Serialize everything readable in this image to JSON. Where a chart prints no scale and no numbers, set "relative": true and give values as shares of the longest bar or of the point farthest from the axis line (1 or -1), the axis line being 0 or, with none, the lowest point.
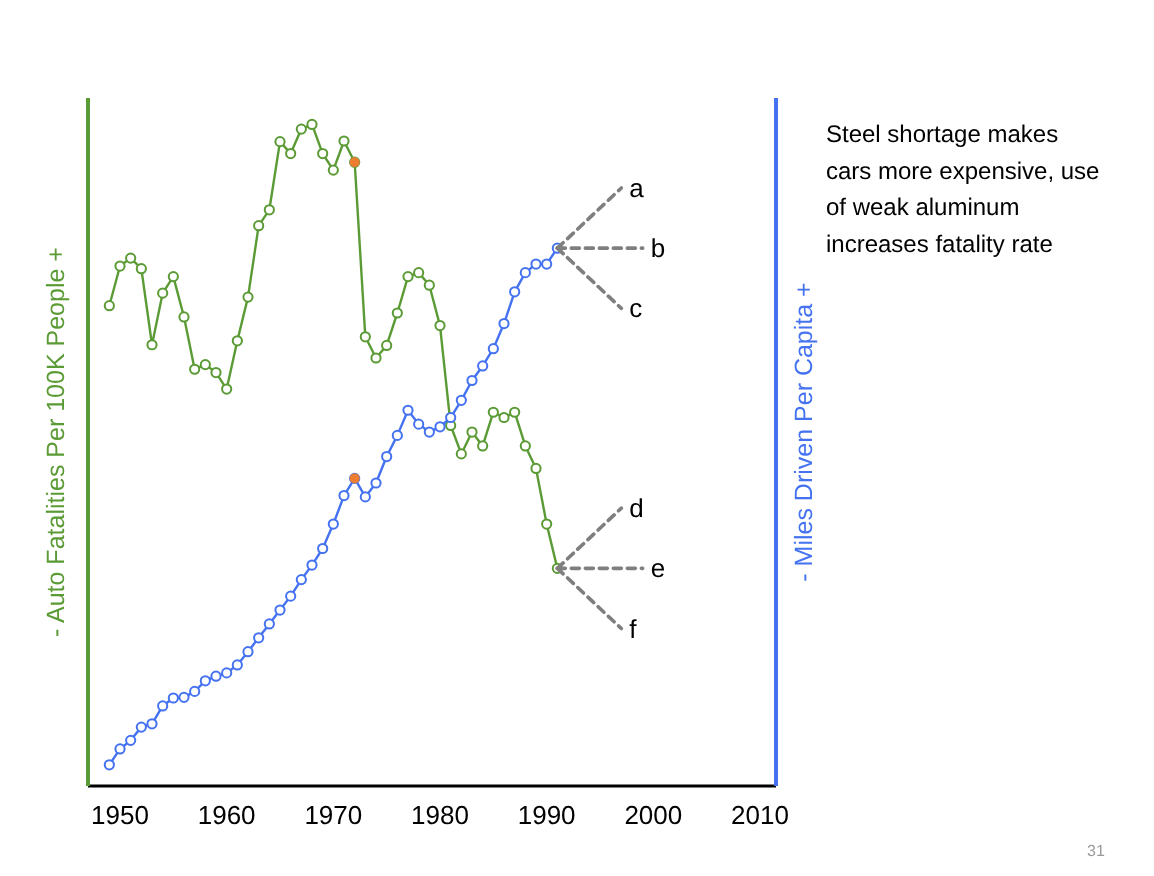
{
  "chart_data": {
    "type": "line",
    "relative": true,
    "xlim": [
      1947,
      2011.5
    ],
    "xticks": [
      1950,
      1960,
      1970,
      1980,
      1990,
      2000,
      2010
    ],
    "ylabel": "- Auto Fatalities Per 100K People +",
    "y2label": "- Miles Driven Per Capita +",
    "annotations": [
      "Steel shortage makes cars more expensive, use of weak aluminum increases fatality rate",
      "31"
    ],
    "series": [
      {
        "color": "#5b9b35",
        "marker": "circle",
        "x": [
          1949,
          1950,
          1951,
          1952,
          1953,
          1954,
          1955,
          1956,
          1957,
          1958,
          1959,
          1960,
          1961,
          1962,
          1963,
          1964,
          1965,
          1966,
          1967,
          1968,
          1969,
          1970,
          1971,
          1972,
          1973,
          1974,
          1975,
          1976,
          1977,
          1978,
          1979,
          1980,
          1981,
          1982,
          1983,
          1984,
          1985,
          1986,
          1987,
          1988,
          1989,
          1990,
          1991
        ],
        "values": [
          0.726,
          0.786,
          0.798,
          0.782,
          0.667,
          0.745,
          0.77,
          0.709,
          0.63,
          0.637,
          0.625,
          0.6,
          0.673,
          0.739,
          0.847,
          0.871,
          0.974,
          0.956,
          0.993,
          1,
          0.956,
          0.931,
          0.975,
          0.943,
          0.679,
          0.647,
          0.666,
          0.715,
          0.77,
          0.776,
          0.757,
          0.696,
          0.545,
          0.502,
          0.535,
          0.514,
          0.565,
          0.557,
          0.565,
          0.514,
          0.48,
          0.396,
          0.329
        ]
      },
      {
        "axis": "y2",
        "color": "#4472f0",
        "marker": "circle",
        "x": [
          1949,
          1950,
          1951,
          1952,
          1953,
          1954,
          1955,
          1956,
          1957,
          1958,
          1959,
          1960,
          1961,
          1962,
          1963,
          1964,
          1965,
          1966,
          1967,
          1968,
          1969,
          1970,
          1971,
          1972,
          1973,
          1974,
          1975,
          1976,
          1977,
          1978,
          1979,
          1980,
          1981,
          1982,
          1983,
          1984,
          1985,
          1986,
          1987,
          1988,
          1989,
          1990,
          1991
        ],
        "values": [
          0.032,
          0.056,
          0.069,
          0.089,
          0.094,
          0.121,
          0.133,
          0.134,
          0.143,
          0.159,
          0.166,
          0.171,
          0.183,
          0.203,
          0.224,
          0.245,
          0.266,
          0.287,
          0.312,
          0.334,
          0.359,
          0.396,
          0.439,
          0.465,
          0.437,
          0.458,
          0.498,
          0.53,
          0.568,
          0.547,
          0.535,
          0.543,
          0.557,
          0.583,
          0.613,
          0.635,
          0.661,
          0.699,
          0.747,
          0.776,
          0.789,
          0.789,
          0.813
        ]
      },
      {
        "type": "scatter",
        "color": "#ed7d31",
        "marker": "circle",
        "x": [
          1972,
          1972
        ],
        "values": [
          0.943,
          0.465
        ]
      },
      {
        "type": "line",
        "name": "a",
        "color": "#7f7f7f",
        "marker": "none",
        "line_style": "dashed",
        "x": [
          1991,
          1997
        ],
        "values": [
          0.813,
          0.904
        ]
      },
      {
        "type": "line",
        "name": "b",
        "color": "#7f7f7f",
        "marker": "none",
        "line_style": "dashed",
        "x": [
          1991,
          1999
        ],
        "values": [
          0.813,
          0.813
        ]
      },
      {
        "type": "line",
        "name": "c",
        "color": "#7f7f7f",
        "marker": "none",
        "line_style": "dashed",
        "x": [
          1991,
          1997
        ],
        "values": [
          0.813,
          0.722
        ]
      },
      {
        "type": "line",
        "name": "d",
        "color": "#7f7f7f",
        "marker": "none",
        "line_style": "dashed",
        "x": [
          1991,
          1997
        ],
        "values": [
          0.329,
          0.42
        ]
      },
      {
        "type": "line",
        "name": "e",
        "color": "#7f7f7f",
        "marker": "none",
        "line_style": "dashed",
        "x": [
          1991,
          1999
        ],
        "values": [
          0.329,
          0.329
        ]
      },
      {
        "type": "line",
        "name": "f",
        "color": "#7f7f7f",
        "marker": "none",
        "line_style": "dashed",
        "x": [
          1991,
          1997
        ],
        "values": [
          0.329,
          0.238
        ]
      }
    ]
  }
}
